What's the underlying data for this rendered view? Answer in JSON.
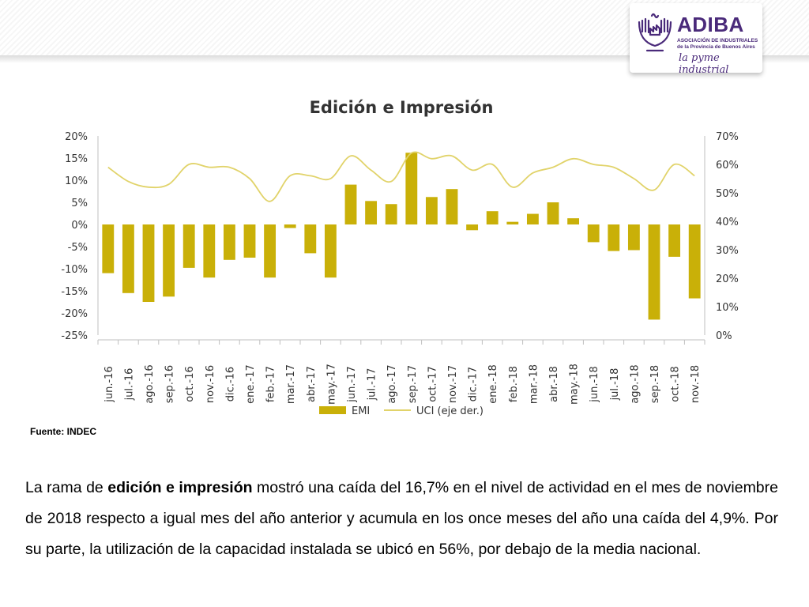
{
  "header": {
    "logo": {
      "name": "ADIBA",
      "subtitle_line1": "ASOCIACIÓN DE INDUSTRIALES",
      "subtitle_line2": "de la Provincia de Buenos Aires",
      "slogan": "la pyme industrial"
    }
  },
  "colors": {
    "bars": "#c9b008",
    "line": "#e1d36a",
    "logo": "#4a2a7a",
    "text": "#333333"
  },
  "chart_data": {
    "type": "bar",
    "title": "Edición e Impresión",
    "categories": [
      "jun.-16",
      "jul.-16",
      "ago.-16",
      "sep.-16",
      "oct.-16",
      "nov.-16",
      "dic.-16",
      "ene.-17",
      "feb.-17",
      "mar.-17",
      "abr.-17",
      "may.-17",
      "jun.-17",
      "jul.-17",
      "ago.-17",
      "sep.-17",
      "oct.-17",
      "nov.-17",
      "dic.-17",
      "ene.-18",
      "feb.-18",
      "mar.-18",
      "abr.-18",
      "may.-18",
      "jun.-18",
      "jul.-18",
      "ago.-18",
      "sep.-18",
      "oct.-18",
      "nov.-18"
    ],
    "series": [
      {
        "name": "EMI",
        "type": "bar",
        "axis": "left",
        "values": [
          -11.0,
          -15.5,
          -17.5,
          -16.3,
          -9.8,
          -12.0,
          -8.0,
          -7.5,
          -12.0,
          -0.8,
          -6.5,
          -12.0,
          9.0,
          5.3,
          4.6,
          16.2,
          6.2,
          8.0,
          -1.3,
          3.0,
          0.6,
          2.4,
          5.0,
          1.4,
          -4.0,
          -6.0,
          -5.8,
          -21.5,
          -7.3,
          -16.7
        ]
      },
      {
        "name": "UCI (eje der.)",
        "type": "line",
        "axis": "right",
        "values": [
          59,
          54,
          52,
          53,
          60,
          59,
          59,
          55,
          47,
          56,
          56,
          55,
          63,
          58,
          54,
          64,
          62,
          63,
          58,
          60,
          52,
          57,
          59,
          62,
          60,
          59,
          55,
          51,
          60,
          56
        ]
      }
    ],
    "y_left": {
      "ylim": [
        -25,
        20
      ],
      "ticks": [
        20,
        15,
        10,
        5,
        0,
        -5,
        -10,
        -15,
        -20,
        -25
      ],
      "tick_labels": [
        "20%",
        "15%",
        "10%",
        "5%",
        "0%",
        "-5%",
        "-10%",
        "-15%",
        "-20%",
        "-25%"
      ]
    },
    "y_right": {
      "ylim": [
        0,
        70
      ],
      "ticks": [
        70,
        60,
        50,
        40,
        30,
        20,
        10,
        0
      ],
      "tick_labels": [
        "70%",
        "60%",
        "50%",
        "40%",
        "30%",
        "20%",
        "10%",
        "0%"
      ]
    },
    "grid": false,
    "legend": {
      "position": "bottom",
      "entries": [
        "EMI",
        "UCI (eje der.)"
      ]
    }
  },
  "source_note": "Fuente: INDEC",
  "paragraph": {
    "part1": "La rama de ",
    "bold": "edición e impresión",
    "part2": " mostró una caída del 16,7% en el nivel de actividad en el mes de noviembre de 2018 respecto a igual mes del año anterior y acumula en los once meses del año una caída del 4,9%. Por su parte, la utilización de la capacidad instalada se ubicó en 56%, por debajo de la media nacional."
  }
}
